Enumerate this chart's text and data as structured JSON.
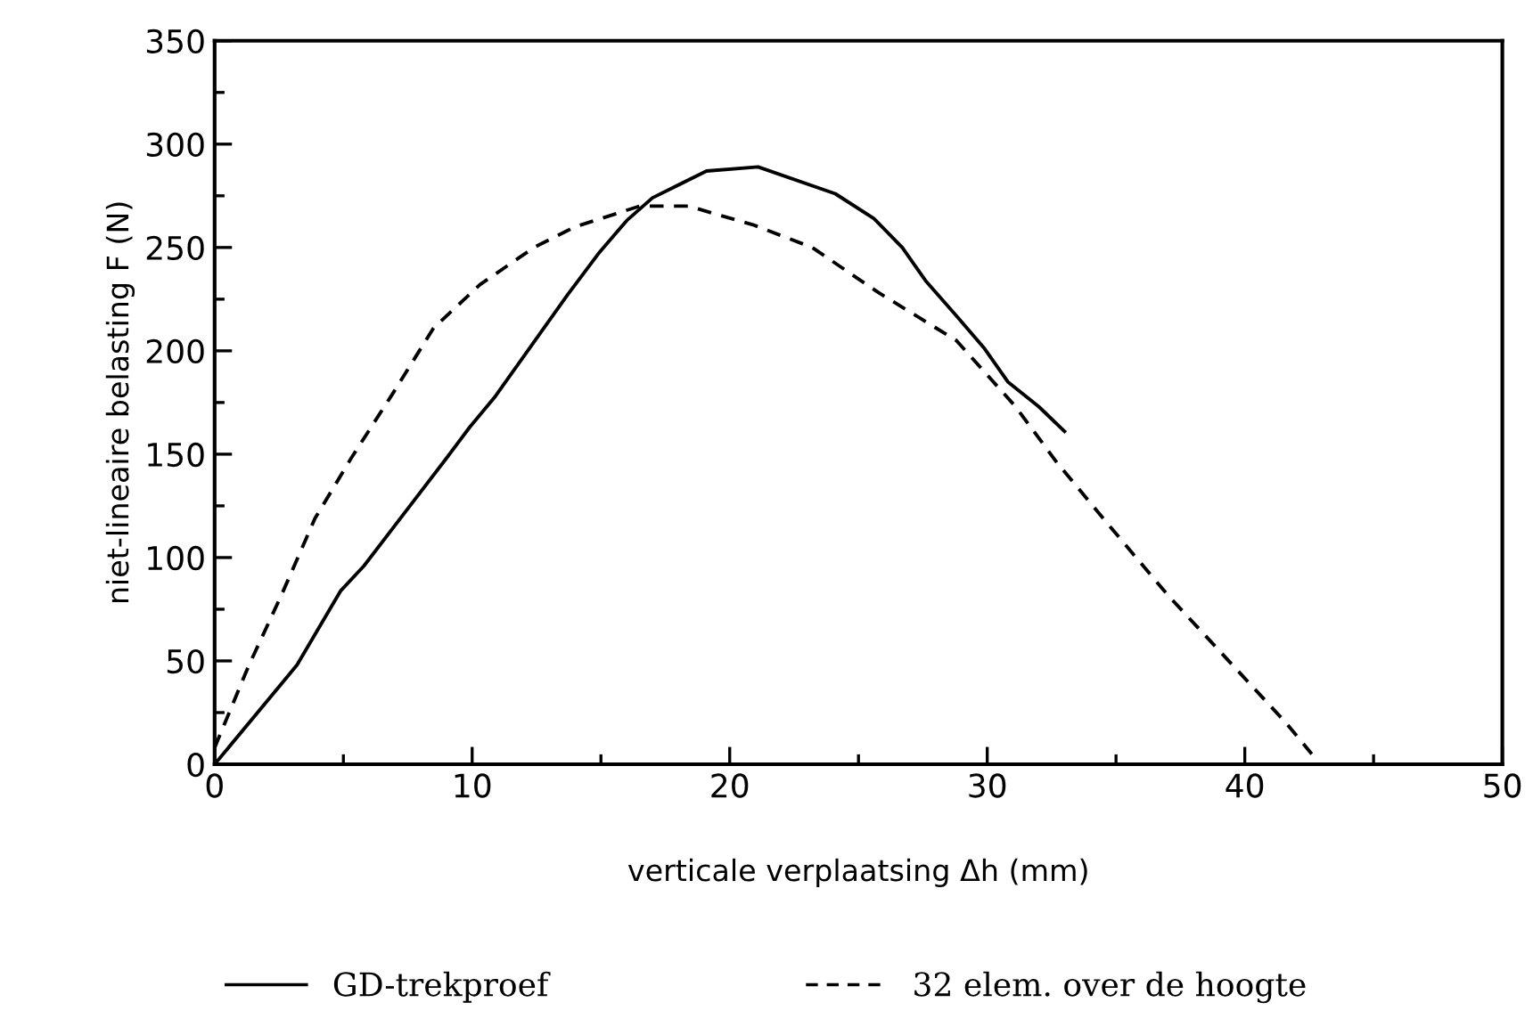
{
  "chart_data": {
    "type": "line",
    "xlabel": "verticale verplaatsing Δh (mm)",
    "ylabel": "niet-lineaire belasting F (N)",
    "xlim": [
      0,
      50
    ],
    "ylim": [
      0,
      350
    ],
    "xticks": [
      0,
      {
        "value": 5,
        "label": null
      },
      10,
      {
        "value": 15,
        "label": null
      },
      20,
      {
        "value": 25,
        "label": null
      },
      30,
      {
        "value": 35,
        "label": null
      },
      40,
      {
        "value": 45,
        "label": null
      },
      50
    ],
    "yticks": [
      0,
      {
        "value": 25,
        "label": null
      },
      50,
      {
        "value": 75,
        "label": null
      },
      100,
      {
        "value": 125,
        "label": null
      },
      150,
      {
        "value": 175,
        "label": null
      },
      200,
      {
        "value": 225,
        "label": null
      },
      250,
      {
        "value": 275,
        "label": null
      },
      300,
      {
        "value": 325,
        "label": null
      },
      350
    ],
    "grid": false,
    "legend": "bottom",
    "marker": "none",
    "series": [
      {
        "name": "GD-trekproef",
        "color": "#000000",
        "line_style": "solid",
        "x": [
          0,
          3.2,
          4.9,
          5.8,
          7.4,
          9.0,
          9.9,
          10.9,
          12.1,
          13.7,
          14.9,
          16.0,
          17.0,
          19.1,
          21.1,
          24.1,
          25.6,
          26.7,
          27.6,
          28.8,
          29.9,
          30.8,
          32.0,
          33.0
        ],
        "values": [
          0,
          48,
          84,
          96,
          122,
          148,
          163,
          178,
          199,
          227,
          247,
          263,
          274,
          287,
          289,
          276,
          264,
          250,
          234,
          217,
          201,
          185,
          173,
          161
        ]
      },
      {
        "name": "32 elem. over de hoogte",
        "color": "#000000",
        "line_style": "dashed",
        "x": [
          0,
          0.5,
          1.3,
          2.6,
          3.9,
          5.3,
          6.9,
          8.5,
          10.3,
          12.4,
          14.0,
          16.5,
          18.4,
          20.9,
          23.2,
          25.8,
          28.8,
          31.1,
          32.7,
          34.7,
          37.0,
          39.3,
          41.6,
          42.6
        ],
        "values": [
          8,
          23,
          47,
          82,
          119,
          148,
          179,
          211,
          232,
          250,
          260,
          270,
          270,
          261,
          250,
          228,
          205,
          173,
          146,
          116,
          82,
          51,
          20,
          5
        ]
      }
    ]
  }
}
